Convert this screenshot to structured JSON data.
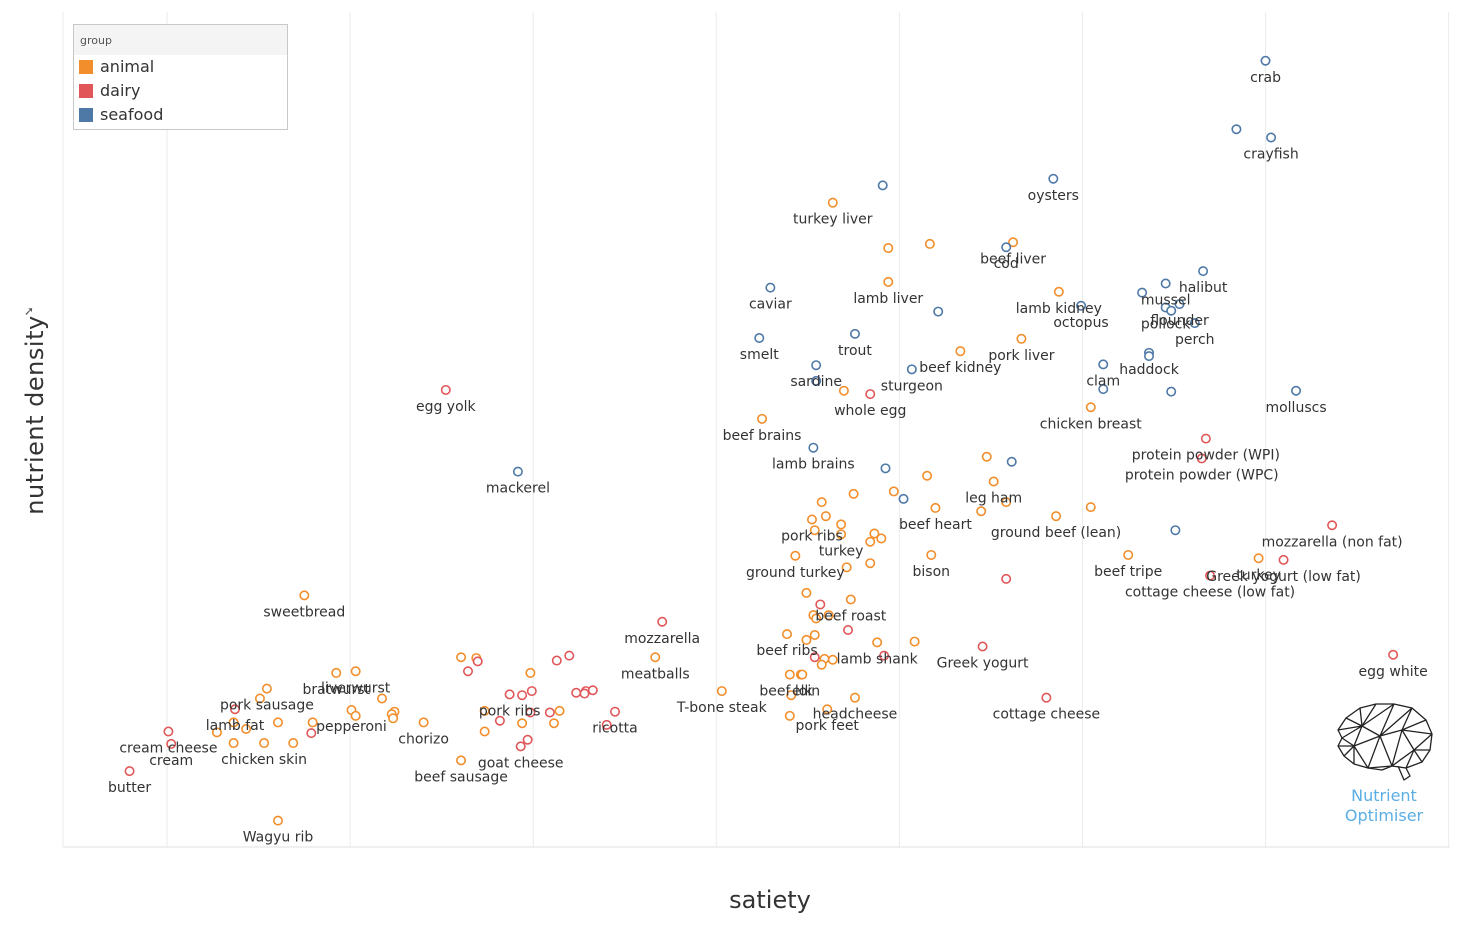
{
  "chart_data": {
    "type": "scatter",
    "title": "",
    "xlabel": "satiety",
    "ylabel": "nutrient density",
    "xlim": [
      0,
      100
    ],
    "ylim": [
      0,
      100
    ],
    "grid": true,
    "legend": {
      "title": "group",
      "position": "top-left",
      "entries": [
        {
          "name": "animal",
          "color": "#f28e2b"
        },
        {
          "name": "dairy",
          "color": "#e15759"
        },
        {
          "name": "seafood",
          "color": "#4e79a7"
        }
      ]
    },
    "points": [
      {
        "x": 86.7,
        "y": 95.3,
        "group": "seafood",
        "label": "crab"
      },
      {
        "x": 84.6,
        "y": 87.0,
        "group": "seafood",
        "label": ""
      },
      {
        "x": 87.1,
        "y": 86.0,
        "group": "seafood",
        "label": "crayfish"
      },
      {
        "x": 71.4,
        "y": 81.0,
        "group": "seafood",
        "label": "oysters"
      },
      {
        "x": 59.1,
        "y": 80.2,
        "group": "seafood",
        "label": ""
      },
      {
        "x": 55.5,
        "y": 78.1,
        "group": "animal",
        "label": "turkey liver"
      },
      {
        "x": 59.5,
        "y": 72.6,
        "group": "animal",
        "label": ""
      },
      {
        "x": 62.5,
        "y": 73.1,
        "group": "animal",
        "label": ""
      },
      {
        "x": 68.5,
        "y": 73.3,
        "group": "animal",
        "label": "beef liver"
      },
      {
        "x": 68.0,
        "y": 72.7,
        "group": "seafood",
        "label": "cod"
      },
      {
        "x": 59.5,
        "y": 68.5,
        "group": "animal",
        "label": "lamb liver"
      },
      {
        "x": 51.0,
        "y": 67.8,
        "group": "seafood",
        "label": "caviar"
      },
      {
        "x": 71.8,
        "y": 67.3,
        "group": "animal",
        "label": "lamb kidney"
      },
      {
        "x": 82.2,
        "y": 69.8,
        "group": "seafood",
        "label": "halibut"
      },
      {
        "x": 79.5,
        "y": 68.3,
        "group": "seafood",
        "label": "mussel"
      },
      {
        "x": 77.8,
        "y": 67.2,
        "group": "seafood",
        "label": ""
      },
      {
        "x": 73.4,
        "y": 65.6,
        "group": "seafood",
        "label": "octopus"
      },
      {
        "x": 63.1,
        "y": 64.9,
        "group": "seafood",
        "label": ""
      },
      {
        "x": 79.5,
        "y": 65.4,
        "group": "seafood",
        "label": "pollock"
      },
      {
        "x": 79.9,
        "y": 65.0,
        "group": "seafood",
        "label": ""
      },
      {
        "x": 80.5,
        "y": 65.8,
        "group": "seafood",
        "label": "flounder"
      },
      {
        "x": 81.6,
        "y": 63.5,
        "group": "seafood",
        "label": "perch"
      },
      {
        "x": 50.2,
        "y": 61.7,
        "group": "seafood",
        "label": "smelt"
      },
      {
        "x": 57.1,
        "y": 62.2,
        "group": "seafood",
        "label": "trout"
      },
      {
        "x": 64.7,
        "y": 60.1,
        "group": "animal",
        "label": "beef kidney"
      },
      {
        "x": 69.1,
        "y": 61.6,
        "group": "animal",
        "label": "pork liver"
      },
      {
        "x": 78.3,
        "y": 59.9,
        "group": "seafood",
        "label": "haddock"
      },
      {
        "x": 78.3,
        "y": 59.5,
        "group": "seafood",
        "label": ""
      },
      {
        "x": 54.3,
        "y": 58.4,
        "group": "seafood",
        "label": "sardine"
      },
      {
        "x": 54.3,
        "y": 56.5,
        "group": "seafood",
        "label": ""
      },
      {
        "x": 61.2,
        "y": 57.9,
        "group": "seafood",
        "label": "sturgeon"
      },
      {
        "x": 56.3,
        "y": 55.3,
        "group": "animal",
        "label": ""
      },
      {
        "x": 58.2,
        "y": 54.9,
        "group": "dairy",
        "label": "whole egg"
      },
      {
        "x": 75.0,
        "y": 58.5,
        "group": "seafood",
        "label": "clam"
      },
      {
        "x": 75.0,
        "y": 55.5,
        "group": "seafood",
        "label": ""
      },
      {
        "x": 79.9,
        "y": 55.2,
        "group": "seafood",
        "label": ""
      },
      {
        "x": 88.9,
        "y": 55.3,
        "group": "seafood",
        "label": "molluscs"
      },
      {
        "x": 74.1,
        "y": 53.3,
        "group": "animal",
        "label": "chicken breast"
      },
      {
        "x": 27.6,
        "y": 55.4,
        "group": "dairy",
        "label": "egg yolk"
      },
      {
        "x": 50.4,
        "y": 51.9,
        "group": "animal",
        "label": "beef brains"
      },
      {
        "x": 82.4,
        "y": 49.5,
        "group": "dairy",
        "label": "protein powder (WPI)"
      },
      {
        "x": 54.1,
        "y": 48.4,
        "group": "seafood",
        "label": "lamb brains"
      },
      {
        "x": 66.6,
        "y": 47.3,
        "group": "animal",
        "label": ""
      },
      {
        "x": 68.4,
        "y": 46.7,
        "group": "seafood",
        "label": ""
      },
      {
        "x": 59.3,
        "y": 45.9,
        "group": "seafood",
        "label": ""
      },
      {
        "x": 62.3,
        "y": 45.0,
        "group": "animal",
        "label": ""
      },
      {
        "x": 67.1,
        "y": 44.3,
        "group": "animal",
        "label": "leg ham"
      },
      {
        "x": 82.1,
        "y": 47.1,
        "group": "dairy",
        "label": "protein powder (WPC)"
      },
      {
        "x": 32.8,
        "y": 45.5,
        "group": "seafood",
        "label": "mackerel"
      },
      {
        "x": 59.9,
        "y": 43.1,
        "group": "animal",
        "label": ""
      },
      {
        "x": 57.0,
        "y": 42.8,
        "group": "animal",
        "label": ""
      },
      {
        "x": 60.6,
        "y": 42.2,
        "group": "seafood",
        "label": ""
      },
      {
        "x": 54.7,
        "y": 41.8,
        "group": "animal",
        "label": ""
      },
      {
        "x": 68.0,
        "y": 41.8,
        "group": "animal",
        "label": ""
      },
      {
        "x": 62.9,
        "y": 41.1,
        "group": "animal",
        "label": "beef heart"
      },
      {
        "x": 66.2,
        "y": 40.7,
        "group": "animal",
        "label": ""
      },
      {
        "x": 55.0,
        "y": 40.1,
        "group": "animal",
        "label": ""
      },
      {
        "x": 54.0,
        "y": 39.7,
        "group": "animal",
        "label": "pork ribs"
      },
      {
        "x": 71.6,
        "y": 40.1,
        "group": "animal",
        "label": "ground beef (lean)"
      },
      {
        "x": 74.1,
        "y": 41.2,
        "group": "animal",
        "label": ""
      },
      {
        "x": 56.1,
        "y": 39.1,
        "group": "animal",
        "label": ""
      },
      {
        "x": 54.2,
        "y": 38.4,
        "group": "animal",
        "label": ""
      },
      {
        "x": 56.1,
        "y": 37.9,
        "group": "animal",
        "label": "turkey"
      },
      {
        "x": 58.5,
        "y": 38.0,
        "group": "animal",
        "label": ""
      },
      {
        "x": 59.0,
        "y": 37.4,
        "group": "animal",
        "label": ""
      },
      {
        "x": 58.2,
        "y": 37.0,
        "group": "animal",
        "label": ""
      },
      {
        "x": 80.2,
        "y": 38.4,
        "group": "seafood",
        "label": ""
      },
      {
        "x": 91.5,
        "y": 39.0,
        "group": "dairy",
        "label": "mozzarella (non fat)"
      },
      {
        "x": 52.8,
        "y": 35.3,
        "group": "animal",
        "label": "ground turkey"
      },
      {
        "x": 62.6,
        "y": 35.4,
        "group": "animal",
        "label": "bison"
      },
      {
        "x": 56.5,
        "y": 33.9,
        "group": "animal",
        "label": ""
      },
      {
        "x": 58.2,
        "y": 34.4,
        "group": "animal",
        "label": ""
      },
      {
        "x": 76.8,
        "y": 35.4,
        "group": "animal",
        "label": "beef tripe"
      },
      {
        "x": 86.2,
        "y": 35.0,
        "group": "animal",
        "label": "turkey"
      },
      {
        "x": 88.0,
        "y": 34.8,
        "group": "dairy",
        "label": "Greek yogurt (low fat)"
      },
      {
        "x": 82.7,
        "y": 32.9,
        "group": "dairy",
        "label": "cottage cheese (low fat)"
      },
      {
        "x": 68.0,
        "y": 32.5,
        "group": "dairy",
        "label": ""
      },
      {
        "x": 17.4,
        "y": 30.5,
        "group": "animal",
        "label": "sweetbread"
      },
      {
        "x": 53.6,
        "y": 30.8,
        "group": "animal",
        "label": ""
      },
      {
        "x": 56.8,
        "y": 30.0,
        "group": "animal",
        "label": "beef roast"
      },
      {
        "x": 54.6,
        "y": 29.4,
        "group": "dairy",
        "label": ""
      },
      {
        "x": 54.1,
        "y": 28.1,
        "group": "animal",
        "label": ""
      },
      {
        "x": 55.2,
        "y": 28.1,
        "group": "animal",
        "label": ""
      },
      {
        "x": 54.3,
        "y": 27.7,
        "group": "animal",
        "label": ""
      },
      {
        "x": 43.2,
        "y": 27.3,
        "group": "dairy",
        "label": "mozzarella"
      },
      {
        "x": 56.6,
        "y": 26.3,
        "group": "dairy",
        "label": ""
      },
      {
        "x": 52.2,
        "y": 25.8,
        "group": "animal",
        "label": "beef ribs"
      },
      {
        "x": 54.2,
        "y": 25.7,
        "group": "animal",
        "label": ""
      },
      {
        "x": 53.6,
        "y": 25.1,
        "group": "animal",
        "label": ""
      },
      {
        "x": 58.7,
        "y": 24.8,
        "group": "animal",
        "label": "lamb shank"
      },
      {
        "x": 61.4,
        "y": 24.9,
        "group": "animal",
        "label": ""
      },
      {
        "x": 66.3,
        "y": 24.3,
        "group": "dairy",
        "label": "Greek yogurt"
      },
      {
        "x": 59.2,
        "y": 23.2,
        "group": "dairy",
        "label": ""
      },
      {
        "x": 54.2,
        "y": 23.0,
        "group": "dairy",
        "label": ""
      },
      {
        "x": 55.5,
        "y": 22.7,
        "group": "animal",
        "label": ""
      },
      {
        "x": 54.9,
        "y": 22.8,
        "group": "animal",
        "label": ""
      },
      {
        "x": 54.7,
        "y": 22.1,
        "group": "animal",
        "label": ""
      },
      {
        "x": 95.9,
        "y": 23.3,
        "group": "dairy",
        "label": "egg white"
      },
      {
        "x": 42.7,
        "y": 23.0,
        "group": "animal",
        "label": "meatballs"
      },
      {
        "x": 28.7,
        "y": 23.0,
        "group": "animal",
        "label": ""
      },
      {
        "x": 29.8,
        "y": 22.9,
        "group": "animal",
        "label": ""
      },
      {
        "x": 29.9,
        "y": 22.5,
        "group": "dairy",
        "label": ""
      },
      {
        "x": 36.5,
        "y": 23.2,
        "group": "dairy",
        "label": ""
      },
      {
        "x": 35.6,
        "y": 22.6,
        "group": "dairy",
        "label": ""
      },
      {
        "x": 52.4,
        "y": 20.9,
        "group": "animal",
        "label": "beef loin"
      },
      {
        "x": 53.2,
        "y": 20.9,
        "group": "animal",
        "label": ""
      },
      {
        "x": 53.3,
        "y": 20.9,
        "group": "animal",
        "label": "elk"
      },
      {
        "x": 21.1,
        "y": 21.3,
        "group": "animal",
        "label": "liverwurst"
      },
      {
        "x": 19.7,
        "y": 21.1,
        "group": "animal",
        "label": "bratwurst"
      },
      {
        "x": 29.2,
        "y": 21.3,
        "group": "dairy",
        "label": ""
      },
      {
        "x": 33.7,
        "y": 21.1,
        "group": "animal",
        "label": ""
      },
      {
        "x": 14.7,
        "y": 19.2,
        "group": "animal",
        "label": "pork sausage"
      },
      {
        "x": 33.8,
        "y": 18.9,
        "group": "dairy",
        "label": ""
      },
      {
        "x": 37.7,
        "y": 18.9,
        "group": "dairy",
        "label": ""
      },
      {
        "x": 37.0,
        "y": 18.7,
        "group": "dairy",
        "label": ""
      },
      {
        "x": 37.6,
        "y": 18.6,
        "group": "dairy",
        "label": ""
      },
      {
        "x": 38.2,
        "y": 19.0,
        "group": "dairy",
        "label": ""
      },
      {
        "x": 32.2,
        "y": 18.5,
        "group": "dairy",
        "label": "pork ribs"
      },
      {
        "x": 33.1,
        "y": 18.4,
        "group": "dairy",
        "label": ""
      },
      {
        "x": 47.5,
        "y": 18.9,
        "group": "animal",
        "label": "T-bone steak"
      },
      {
        "x": 52.5,
        "y": 18.4,
        "group": "animal",
        "label": ""
      },
      {
        "x": 57.1,
        "y": 18.1,
        "group": "animal",
        "label": "headcheese"
      },
      {
        "x": 70.9,
        "y": 18.1,
        "group": "dairy",
        "label": "cottage cheese"
      },
      {
        "x": 14.2,
        "y": 18.0,
        "group": "animal",
        "label": ""
      },
      {
        "x": 23.0,
        "y": 18.0,
        "group": "animal",
        "label": ""
      },
      {
        "x": 12.4,
        "y": 16.7,
        "group": "dairy",
        "label": "lamb fat"
      },
      {
        "x": 20.8,
        "y": 16.6,
        "group": "animal",
        "label": "pepperoni"
      },
      {
        "x": 23.9,
        "y": 16.4,
        "group": "animal",
        "label": ""
      },
      {
        "x": 30.4,
        "y": 16.5,
        "group": "animal",
        "label": ""
      },
      {
        "x": 33.7,
        "y": 16.3,
        "group": "dairy",
        "label": ""
      },
      {
        "x": 35.1,
        "y": 16.3,
        "group": "dairy",
        "label": ""
      },
      {
        "x": 35.8,
        "y": 16.5,
        "group": "animal",
        "label": ""
      },
      {
        "x": 55.1,
        "y": 16.7,
        "group": "animal",
        "label": "pork feet"
      },
      {
        "x": 39.8,
        "y": 16.4,
        "group": "dairy",
        "label": "ricotta"
      },
      {
        "x": 52.4,
        "y": 15.9,
        "group": "animal",
        "label": ""
      },
      {
        "x": 21.1,
        "y": 15.9,
        "group": "animal",
        "label": ""
      },
      {
        "x": 23.7,
        "y": 16.1,
        "group": "animal",
        "label": ""
      },
      {
        "x": 23.8,
        "y": 15.6,
        "group": "animal",
        "label": ""
      },
      {
        "x": 12.3,
        "y": 15.1,
        "group": "animal",
        "label": ""
      },
      {
        "x": 15.5,
        "y": 15.1,
        "group": "animal",
        "label": ""
      },
      {
        "x": 18.0,
        "y": 15.1,
        "group": "animal",
        "label": ""
      },
      {
        "x": 31.5,
        "y": 15.3,
        "group": "dairy",
        "label": ""
      },
      {
        "x": 26.0,
        "y": 15.1,
        "group": "animal",
        "label": "chorizo"
      },
      {
        "x": 35.4,
        "y": 15.0,
        "group": "animal",
        "label": ""
      },
      {
        "x": 39.2,
        "y": 14.8,
        "group": "dairy",
        "label": ""
      },
      {
        "x": 33.1,
        "y": 15.0,
        "group": "animal",
        "label": ""
      },
      {
        "x": 13.2,
        "y": 14.3,
        "group": "animal",
        "label": ""
      },
      {
        "x": 11.1,
        "y": 13.9,
        "group": "animal",
        "label": ""
      },
      {
        "x": 17.9,
        "y": 13.8,
        "group": "dairy",
        "label": ""
      },
      {
        "x": 7.6,
        "y": 14.0,
        "group": "dairy",
        "label": "cream cheese"
      },
      {
        "x": 30.4,
        "y": 14.0,
        "group": "animal",
        "label": ""
      },
      {
        "x": 33.5,
        "y": 13.0,
        "group": "dairy",
        "label": ""
      },
      {
        "x": 12.3,
        "y": 12.6,
        "group": "animal",
        "label": ""
      },
      {
        "x": 14.5,
        "y": 12.6,
        "group": "animal",
        "label": "chicken skin"
      },
      {
        "x": 16.6,
        "y": 12.6,
        "group": "animal",
        "label": ""
      },
      {
        "x": 7.8,
        "y": 12.5,
        "group": "dairy",
        "label": "cream"
      },
      {
        "x": 33.0,
        "y": 12.2,
        "group": "dairy",
        "label": "goat cheese"
      },
      {
        "x": 28.7,
        "y": 10.5,
        "group": "animal",
        "label": "beef sausage"
      },
      {
        "x": 4.8,
        "y": 9.2,
        "group": "dairy",
        "label": "butter"
      },
      {
        "x": 15.5,
        "y": 3.2,
        "group": "animal",
        "label": "Wagyu rib"
      }
    ]
  },
  "logo": {
    "line1": "Nutrient",
    "line2": "Optimiser"
  }
}
